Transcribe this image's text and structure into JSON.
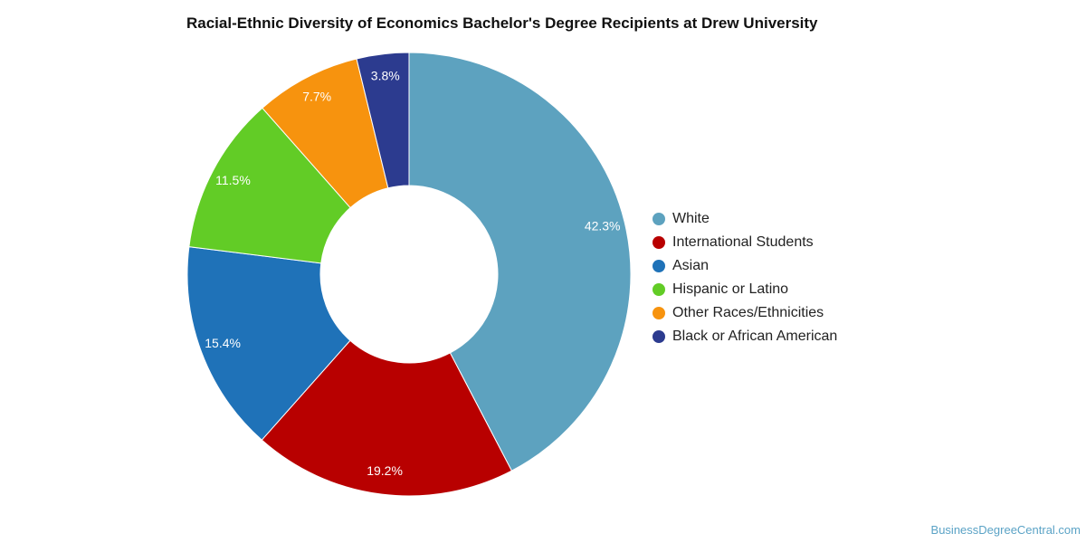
{
  "chart_data": {
    "type": "pie",
    "title": "Racial-Ethnic Diversity of Economics Bachelor's Degree Recipients at Drew University",
    "categories": [
      "White",
      "International Students",
      "Asian",
      "Hispanic or Latino",
      "Other Races/Ethnicities",
      "Black or African American"
    ],
    "values": [
      42.3,
      19.2,
      15.4,
      11.5,
      7.7,
      3.8
    ],
    "labels": [
      "42.3%",
      "19.2%",
      "15.4%",
      "11.5%",
      "7.7%",
      "3.8%"
    ],
    "colors": [
      "#5da2bf",
      "#b80000",
      "#1f72b8",
      "#62cc26",
      "#f7930e",
      "#2c3b8f"
    ],
    "legend_position": "right",
    "donut": true
  },
  "credit": "BusinessDegreeCentral.com"
}
